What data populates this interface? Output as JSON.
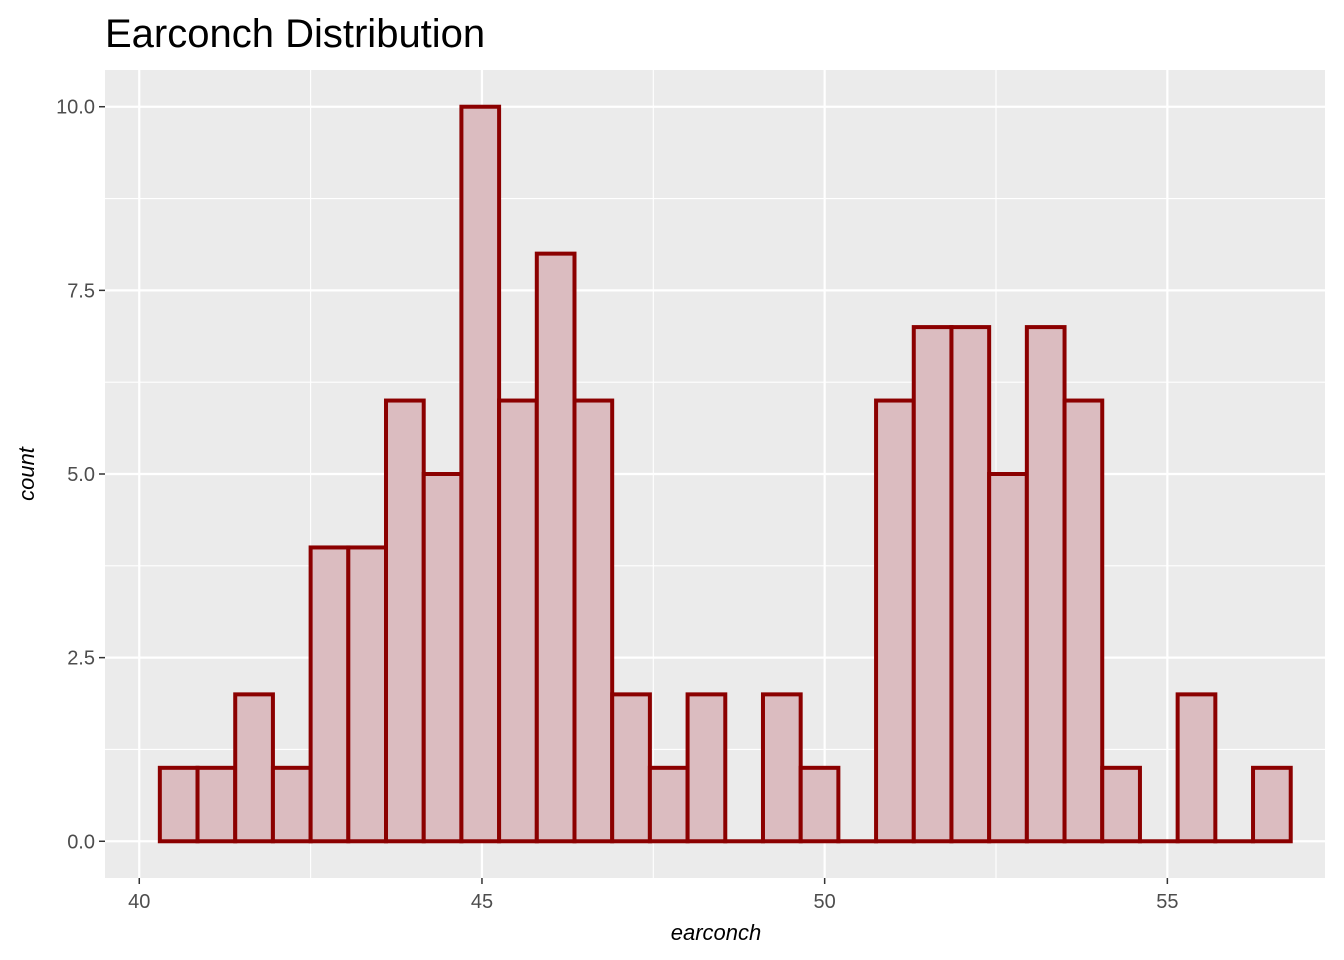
{
  "chart_data": {
    "type": "bar",
    "subtype": "histogram",
    "title": "Earconch Distribution",
    "xlabel": "earconch",
    "ylabel": "count",
    "xlim": [
      39.5,
      57.3
    ],
    "ylim": [
      -0.5,
      10.5
    ],
    "x_ticks": [
      40,
      45,
      50,
      55
    ],
    "x_tick_labels": [
      "40",
      "45",
      "50",
      "55"
    ],
    "y_ticks": [
      0,
      2.5,
      5,
      7.5,
      10
    ],
    "y_tick_labels": [
      "0.0",
      "2.5",
      "5.0",
      "7.5",
      "10.0"
    ],
    "grid": true,
    "bin_start": 40.3,
    "bin_width": 0.55,
    "counts": [
      1,
      1,
      2,
      1,
      4,
      4,
      6,
      5,
      10,
      6,
      8,
      6,
      2,
      1,
      2,
      0,
      2,
      1,
      0,
      6,
      7,
      7,
      5,
      7,
      6,
      1,
      0,
      2,
      0,
      1
    ],
    "colors": {
      "panel": "#ebebeb",
      "grid": "#ffffff",
      "bar_fill": "#dbbcc0",
      "bar_outline": "#8b0000",
      "axis_tick": "#333333"
    }
  }
}
